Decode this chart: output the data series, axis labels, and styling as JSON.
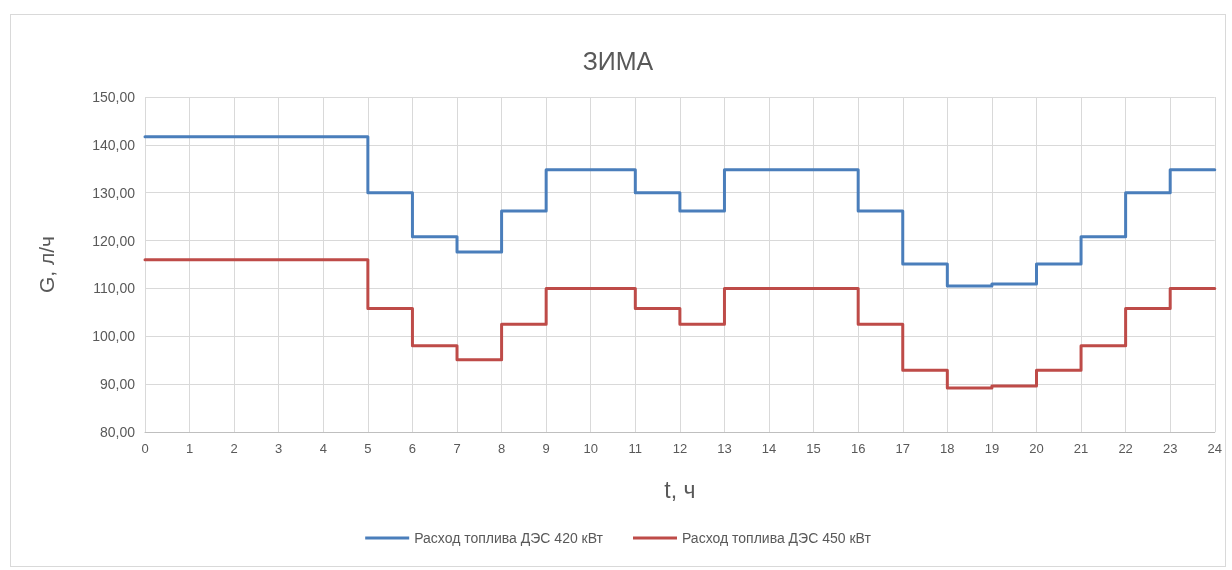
{
  "chart_data": {
    "type": "step",
    "title": "ЗИМА",
    "xlabel": "t, ч",
    "ylabel": "G, л/ч",
    "x": [
      0,
      1,
      2,
      3,
      4,
      5,
      6,
      7,
      8,
      9,
      10,
      11,
      12,
      13,
      14,
      15,
      16,
      17,
      18,
      19,
      20,
      21,
      22,
      23,
      24
    ],
    "series": [
      {
        "name": "Расход топлива ДЭС 420 кВт",
        "color": "#4a7ebb",
        "values": [
          141.7,
          141.7,
          141.7,
          141.7,
          141.7,
          130,
          120.8,
          117.6,
          126.2,
          134.8,
          134.8,
          130,
          126.2,
          134.8,
          134.8,
          134.8,
          126.2,
          115.1,
          110.5,
          110.9,
          115.1,
          120.8,
          130,
          134.8,
          134.8
        ]
      },
      {
        "name": "Расход топлива ДЭС 450 кВт",
        "color": "#be4b48",
        "values": [
          116,
          116,
          116,
          116,
          116,
          105.8,
          98,
          95.1,
          102.5,
          110,
          110,
          105.8,
          102.5,
          110,
          110,
          110,
          102.5,
          92.9,
          89.2,
          89.6,
          92.9,
          98,
          105.8,
          110,
          110
        ]
      }
    ],
    "xlim": [
      0,
      24
    ],
    "xticks": [
      0,
      1,
      2,
      3,
      4,
      5,
      6,
      7,
      8,
      9,
      10,
      11,
      12,
      13,
      14,
      15,
      16,
      17,
      18,
      19,
      20,
      21,
      22,
      23,
      24
    ],
    "ylim": [
      80,
      150
    ],
    "yticks": [
      {
        "value": 80,
        "label": "80,00"
      },
      {
        "value": 90,
        "label": "90,00"
      },
      {
        "value": 100,
        "label": "100,00"
      },
      {
        "value": 110,
        "label": "110,00"
      },
      {
        "value": 120,
        "label": "120,00"
      },
      {
        "value": 130,
        "label": "130,00"
      },
      {
        "value": 140,
        "label": "140,00"
      },
      {
        "value": 150,
        "label": "150,00"
      }
    ],
    "grid": true,
    "legend": "bottom",
    "marker": "none",
    "line_style": "solid"
  }
}
